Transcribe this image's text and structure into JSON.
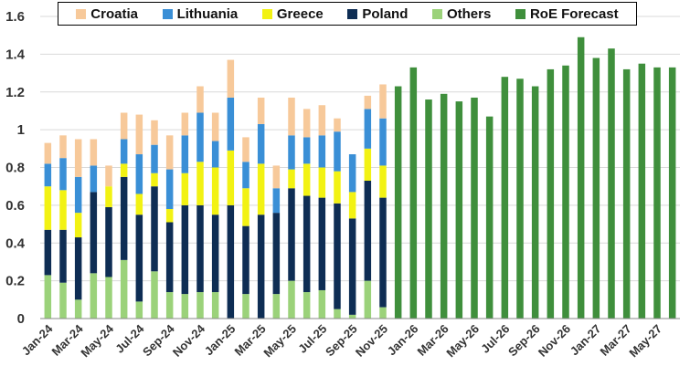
{
  "chart_data": {
    "type": "bar",
    "stacked": true,
    "title": "",
    "xlabel": "",
    "ylabel": "",
    "ylim": [
      0,
      1.6
    ],
    "yticks": [
      0,
      0.2,
      0.4,
      0.6,
      0.8,
      1,
      1.2,
      1.4,
      1.6
    ],
    "ytick_labels": [
      "0",
      "0.2",
      "0.4",
      "0.6",
      "0.8",
      "1",
      "1.2",
      "1.4",
      "1.6"
    ],
    "grid": "horizontal",
    "legend_position": "top",
    "categories": [
      "Jan-24",
      "Feb-24",
      "Mar-24",
      "Apr-24",
      "May-24",
      "Jun-24",
      "Jul-24",
      "Aug-24",
      "Sep-24",
      "Oct-24",
      "Nov-24",
      "Dec-24",
      "Jan-25",
      "Feb-25",
      "Mar-25",
      "Apr-25",
      "May-25",
      "Jun-25",
      "Jul-25",
      "Aug-25",
      "Sep-25",
      "Oct-25",
      "Nov-25",
      "Dec-25",
      "Jan-26",
      "Feb-26",
      "Mar-26",
      "Apr-26",
      "May-26",
      "Jun-26",
      "Jul-26",
      "Aug-26",
      "Sep-26",
      "Oct-26",
      "Nov-26",
      "Dec-26",
      "Jan-27",
      "Feb-27",
      "Mar-27",
      "Apr-27",
      "May-27",
      "Jun-27"
    ],
    "x_tick_labels": [
      "Jan-24",
      "Mar-24",
      "May-24",
      "Jul-24",
      "Sep-24",
      "Nov-24",
      "Jan-25",
      "Mar-25",
      "May-25",
      "Jul-25",
      "Sep-25",
      "Nov-25",
      "Jan-26",
      "Mar-26",
      "May-26",
      "Jul-26",
      "Sep-26",
      "Nov-26",
      "Jan-27",
      "Mar-27",
      "May-27"
    ],
    "series": [
      {
        "name": "Others",
        "color": "#9bd27a",
        "values": [
          0.23,
          0.19,
          0.1,
          0.24,
          0.22,
          0.31,
          0.09,
          0.25,
          0.14,
          0.13,
          0.14,
          0.14,
          0.0,
          0.13,
          0.0,
          0.13,
          0.2,
          0.14,
          0.15,
          0.05,
          0.02,
          0.2,
          0.06,
          null,
          null,
          null,
          null,
          null,
          null,
          null,
          null,
          null,
          null,
          null,
          null,
          null,
          null,
          null,
          null,
          null,
          null,
          null
        ]
      },
      {
        "name": "Poland",
        "color": "#0e2d54",
        "values": [
          0.24,
          0.28,
          0.33,
          0.43,
          0.37,
          0.44,
          0.46,
          0.45,
          0.37,
          0.47,
          0.46,
          0.41,
          0.6,
          0.36,
          0.55,
          0.43,
          0.49,
          0.51,
          0.49,
          0.56,
          0.51,
          0.53,
          0.58,
          null,
          null,
          null,
          null,
          null,
          null,
          null,
          null,
          null,
          null,
          null,
          null,
          null,
          null,
          null,
          null,
          null,
          null,
          null
        ]
      },
      {
        "name": "Greece",
        "color": "#f2f213",
        "values": [
          0.23,
          0.21,
          0.13,
          0.0,
          0.11,
          0.07,
          0.11,
          0.07,
          0.07,
          0.17,
          0.23,
          0.25,
          0.29,
          0.2,
          0.27,
          0.0,
          0.1,
          0.17,
          0.16,
          0.17,
          0.14,
          0.17,
          0.17,
          null,
          null,
          null,
          null,
          null,
          null,
          null,
          null,
          null,
          null,
          null,
          null,
          null,
          null,
          null,
          null,
          null,
          null,
          null
        ]
      },
      {
        "name": "Lithuania",
        "color": "#3a8fd6",
        "values": [
          0.12,
          0.17,
          0.19,
          0.14,
          0.0,
          0.13,
          0.21,
          0.15,
          0.21,
          0.2,
          0.26,
          0.14,
          0.28,
          0.14,
          0.21,
          0.13,
          0.18,
          0.14,
          0.17,
          0.21,
          0.2,
          0.21,
          0.25,
          null,
          null,
          null,
          null,
          null,
          null,
          null,
          null,
          null,
          null,
          null,
          null,
          null,
          null,
          null,
          null,
          null,
          null,
          null
        ]
      },
      {
        "name": "Croatia",
        "color": "#f7c99a",
        "values": [
          0.11,
          0.12,
          0.2,
          0.14,
          0.11,
          0.14,
          0.21,
          0.13,
          0.18,
          0.12,
          0.14,
          0.15,
          0.2,
          0.13,
          0.14,
          0.12,
          0.2,
          0.15,
          0.16,
          0.07,
          0.0,
          0.07,
          0.18,
          null,
          null,
          null,
          null,
          null,
          null,
          null,
          null,
          null,
          null,
          null,
          null,
          null,
          null,
          null,
          null,
          null,
          null,
          null
        ]
      },
      {
        "name": "RoE Forecast",
        "color": "#3f8f3c",
        "values": [
          null,
          null,
          null,
          null,
          null,
          null,
          null,
          null,
          null,
          null,
          null,
          null,
          null,
          null,
          null,
          null,
          null,
          null,
          null,
          null,
          null,
          null,
          null,
          1.23,
          1.33,
          1.16,
          1.19,
          1.15,
          1.17,
          1.07,
          1.28,
          1.27,
          1.23,
          1.32,
          1.34,
          1.49,
          1.38,
          1.43,
          1.32,
          1.35,
          1.33,
          1.33
        ]
      }
    ],
    "legend_order": [
      "Croatia",
      "Lithuania",
      "Greece",
      "Poland",
      "Others",
      "RoE Forecast"
    ]
  }
}
